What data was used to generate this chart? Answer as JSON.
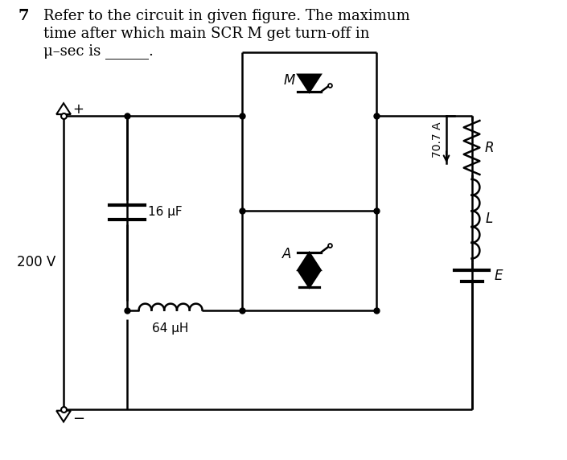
{
  "bg_color": "#ffffff",
  "line_color": "#000000",
  "label_M": "M",
  "label_A": "A",
  "label_C": "16 μF",
  "label_L_ind": "64 μH",
  "label_V": "200 V",
  "label_R": "R",
  "label_L": "L",
  "label_E": "E",
  "label_I": "70.7 A",
  "text1": "7",
  "text2": "Refer to the circuit in given figure. The maximum",
  "text3": "time after which main SCR M get turn-off in",
  "text4": "μ–sec is ______."
}
